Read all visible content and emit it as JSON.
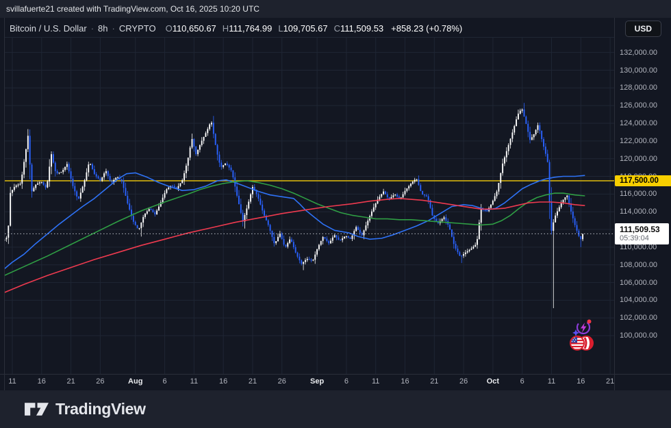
{
  "attribution": {
    "text": "svillafuerte21 created with TradingView.com, Oct 16, 2025 10:20 UTC"
  },
  "header": {
    "symbol": "Bitcoin / U.S. Dollar",
    "separator": "·",
    "interval": "8h",
    "exchange": "CRYPTO",
    "ohlc": [
      {
        "label": "O",
        "value": "110,650.67"
      },
      {
        "label": "H",
        "value": "111,764.99"
      },
      {
        "label": "L",
        "value": "109,705.67"
      },
      {
        "label": "C",
        "value": "111,509.53"
      }
    ],
    "change": "+858.23 (+0.78%)",
    "currency_button": "USD"
  },
  "price_axis": {
    "labels": [
      {
        "price_k": 132,
        "label": "132,000.00"
      },
      {
        "price_k": 130,
        "label": "130,000.00"
      },
      {
        "price_k": 128,
        "label": "128,000.00"
      },
      {
        "price_k": 126,
        "label": "126,000.00"
      },
      {
        "price_k": 124,
        "label": "124,000.00"
      },
      {
        "price_k": 122,
        "label": "122,000.00"
      },
      {
        "price_k": 120,
        "label": "120,000.00"
      },
      {
        "price_k": 118,
        "label": "118,000.00"
      },
      {
        "price_k": 116,
        "label": "116,000.00"
      },
      {
        "price_k": 114,
        "label": "114,000.00"
      },
      {
        "price_k": 112,
        "label": "112,000.00"
      },
      {
        "price_k": 110,
        "label": "110,000.00"
      },
      {
        "price_k": 108,
        "label": "108,000.00"
      },
      {
        "price_k": 106,
        "label": "106,000.00"
      },
      {
        "price_k": 104,
        "label": "104,000.00"
      },
      {
        "price_k": 102,
        "label": "102,000.00"
      },
      {
        "price_k": 100,
        "label": "100,000.00"
      }
    ],
    "yellow_label": "117,500.00",
    "last_price_label": "111,509.53",
    "countdown": "05:39:04"
  },
  "footer": {
    "brand": "TradingView"
  },
  "chart_data": {
    "type": "candlestick",
    "title": "Bitcoin / U.S. Dollar 8h CRYPTO",
    "price_scale": 1000,
    "day0_date": "Jul 9, 2025",
    "y_axis": {
      "min_k": 95.75,
      "max_k": 133.68,
      "grid_min_k": 100,
      "grid_max_k": 132,
      "grid_step_k": 2
    },
    "x_ticks": [
      {
        "label": "11",
        "day": 2
      },
      {
        "label": "16",
        "day": 7
      },
      {
        "label": "21",
        "day": 12
      },
      {
        "label": "26",
        "day": 17
      },
      {
        "label": "Aug",
        "day": 23,
        "major": true
      },
      {
        "label": "6",
        "day": 28
      },
      {
        "label": "11",
        "day": 33
      },
      {
        "label": "16",
        "day": 38
      },
      {
        "label": "21",
        "day": 43
      },
      {
        "label": "26",
        "day": 48
      },
      {
        "label": "Sep",
        "day": 54,
        "major": true
      },
      {
        "label": "6",
        "day": 59
      },
      {
        "label": "11",
        "day": 64
      },
      {
        "label": "16",
        "day": 69
      },
      {
        "label": "21",
        "day": 74
      },
      {
        "label": "26",
        "day": 79
      },
      {
        "label": "Oct",
        "day": 84,
        "major": true
      },
      {
        "label": "6",
        "day": 89
      },
      {
        "label": "11",
        "day": 94
      },
      {
        "label": "16",
        "day": 99
      },
      {
        "label": "21",
        "day": 104
      }
    ],
    "horizontal_line_price_k": 117.5,
    "last_price": 111509.53,
    "last_price_k": 111.50953,
    "candle_interval_days": 0.3333,
    "first_candle_day": 0.5,
    "last_candle_day": 99.67,
    "price_path_k": [
      [
        0.5,
        110.7
      ],
      [
        1.4,
        111.2
      ],
      [
        1.8,
        116.1
      ],
      [
        2.6,
        116.9
      ],
      [
        3.6,
        117.2
      ],
      [
        4.6,
        121.5
      ],
      [
        4.9,
        122.9
      ],
      [
        5.4,
        116.2
      ],
      [
        6.2,
        117.1
      ],
      [
        7.1,
        117.4
      ],
      [
        8.0,
        116.6
      ],
      [
        8.8,
        120.6
      ],
      [
        9.6,
        118.3
      ],
      [
        10.6,
        118.5
      ],
      [
        11.5,
        119.4
      ],
      [
        12.5,
        116.9
      ],
      [
        13.4,
        115.3
      ],
      [
        14.4,
        117.3
      ],
      [
        15.3,
        119.7
      ],
      [
        16.2,
        118.2
      ],
      [
        17.2,
        117.5
      ],
      [
        18.1,
        118.7
      ],
      [
        19.0,
        117.2
      ],
      [
        20.0,
        118.0
      ],
      [
        20.9,
        117.4
      ],
      [
        21.8,
        115.0
      ],
      [
        22.8,
        112.9
      ],
      [
        23.7,
        111.9
      ],
      [
        24.6,
        113.6
      ],
      [
        25.6,
        114.4
      ],
      [
        26.5,
        113.7
      ],
      [
        27.4,
        114.9
      ],
      [
        28.4,
        116.5
      ],
      [
        29.3,
        117.0
      ],
      [
        30.2,
        116.6
      ],
      [
        31.2,
        117.6
      ],
      [
        32.1,
        119.9
      ],
      [
        32.8,
        122.3
      ],
      [
        33.5,
        120.5
      ],
      [
        34.4,
        121.9
      ],
      [
        35.4,
        123.2
      ],
      [
        36.1,
        124.3
      ],
      [
        37.0,
        120.9
      ],
      [
        37.7,
        119.0
      ],
      [
        38.6,
        119.5
      ],
      [
        39.6,
        118.6
      ],
      [
        40.5,
        115.8
      ],
      [
        41.5,
        112.9
      ],
      [
        42.4,
        114.9
      ],
      [
        43.2,
        116.9
      ],
      [
        44.1,
        115.6
      ],
      [
        45.0,
        113.8
      ],
      [
        45.9,
        112.4
      ],
      [
        46.9,
        110.3
      ],
      [
        47.8,
        111.6
      ],
      [
        48.7,
        109.9
      ],
      [
        49.6,
        111.0
      ],
      [
        50.6,
        109.2
      ],
      [
        51.5,
        108.1
      ],
      [
        52.4,
        108.7
      ],
      [
        53.4,
        108.4
      ],
      [
        54.3,
        110.0
      ],
      [
        55.2,
        111.2
      ],
      [
        56.2,
        110.4
      ],
      [
        57.1,
        111.4
      ],
      [
        58.0,
        110.7
      ],
      [
        59.0,
        111.3
      ],
      [
        59.9,
        110.9
      ],
      [
        60.8,
        112.3
      ],
      [
        61.8,
        111.3
      ],
      [
        62.7,
        112.8
      ],
      [
        63.6,
        114.2
      ],
      [
        64.6,
        115.5
      ],
      [
        65.5,
        116.3
      ],
      [
        66.4,
        115.4
      ],
      [
        67.4,
        116.0
      ],
      [
        68.3,
        115.4
      ],
      [
        69.2,
        116.4
      ],
      [
        70.2,
        117.2
      ],
      [
        71.1,
        117.8
      ],
      [
        72.0,
        116.0
      ],
      [
        73.0,
        115.7
      ],
      [
        73.9,
        113.4
      ],
      [
        74.8,
        112.7
      ],
      [
        75.8,
        113.4
      ],
      [
        76.7,
        112.3
      ],
      [
        77.6,
        110.1
      ],
      [
        78.6,
        108.9
      ],
      [
        79.5,
        109.4
      ],
      [
        80.4,
        109.8
      ],
      [
        81.4,
        110.4
      ],
      [
        82.1,
        114.3
      ],
      [
        83.1,
        114.0
      ],
      [
        84.0,
        115.0
      ],
      [
        84.9,
        116.4
      ],
      [
        85.8,
        119.4
      ],
      [
        86.8,
        121.5
      ],
      [
        87.7,
        123.4
      ],
      [
        88.4,
        125.0
      ],
      [
        89.1,
        125.7
      ],
      [
        89.8,
        124.0
      ],
      [
        90.5,
        122.1
      ],
      [
        91.2,
        122.8
      ],
      [
        91.9,
        123.9
      ],
      [
        92.6,
        121.9
      ],
      [
        93.3,
        120.2
      ],
      [
        93.63,
        119.2
      ],
      [
        94.0,
        111.4
      ],
      [
        94.7,
        113.4
      ],
      [
        95.4,
        114.4
      ],
      [
        96.1,
        115.3
      ],
      [
        96.8,
        115.9
      ],
      [
        97.5,
        114.0
      ],
      [
        98.2,
        112.4
      ],
      [
        98.9,
        111.1
      ],
      [
        99.4,
        110.7
      ],
      [
        99.67,
        111.51
      ]
    ],
    "wick_extremes_k": [
      {
        "day": 0.5,
        "type": "low",
        "price": 109.8
      },
      {
        "day": 4.9,
        "type": "high",
        "price": 123.3
      },
      {
        "day": 23.7,
        "type": "low",
        "price": 111.2
      },
      {
        "day": 36.1,
        "type": "high",
        "price": 124.6
      },
      {
        "day": 41.5,
        "type": "low",
        "price": 112.1
      },
      {
        "day": 51.5,
        "type": "low",
        "price": 107.4
      },
      {
        "day": 71.1,
        "type": "high",
        "price": 118.1
      },
      {
        "day": 78.6,
        "type": "low",
        "price": 108.2
      },
      {
        "day": 89.1,
        "type": "high",
        "price": 126.3
      },
      {
        "day": 94.0,
        "type": "low",
        "price": 103.1
      },
      {
        "day": 98.9,
        "type": "low",
        "price": 110.0
      }
    ],
    "moving_averages": [
      {
        "name": "ma-fast-blue",
        "color": "#2e72f6",
        "points_k": [
          [
            0,
            107.2
          ],
          [
            2,
            108.3
          ],
          [
            4,
            109.2
          ],
          [
            6,
            110.4
          ],
          [
            8,
            111.5
          ],
          [
            10,
            112.6
          ],
          [
            12,
            113.6
          ],
          [
            14,
            114.6
          ],
          [
            16,
            115.5
          ],
          [
            18,
            116.6
          ],
          [
            20,
            117.7
          ],
          [
            21.5,
            118.3
          ],
          [
            23,
            118.4
          ],
          [
            25,
            117.9
          ],
          [
            27,
            117.3
          ],
          [
            29,
            116.8
          ],
          [
            31,
            116.4
          ],
          [
            33,
            116.5
          ],
          [
            35,
            116.9
          ],
          [
            37,
            117.5
          ],
          [
            38.5,
            117.6
          ],
          [
            40,
            117.3
          ],
          [
            42,
            116.8
          ],
          [
            44,
            116.3
          ],
          [
            46,
            115.9
          ],
          [
            48,
            115.7
          ],
          [
            50,
            115.5
          ],
          [
            51,
            114.9
          ],
          [
            52,
            114.2
          ],
          [
            53.5,
            113.4
          ],
          [
            55,
            112.6
          ],
          [
            57,
            111.9
          ],
          [
            59.5,
            111.6
          ],
          [
            61,
            111.2
          ],
          [
            63,
            110.9
          ],
          [
            65,
            111.0
          ],
          [
            67,
            111.4
          ],
          [
            69,
            111.9
          ],
          [
            71,
            112.4
          ],
          [
            73,
            113.0
          ],
          [
            75,
            113.8
          ],
          [
            77,
            114.6
          ],
          [
            79,
            114.8
          ],
          [
            80.5,
            114.7
          ],
          [
            82,
            114.4
          ],
          [
            83,
            114.2
          ],
          [
            84.5,
            114.4
          ],
          [
            86,
            115.0
          ],
          [
            87.5,
            115.8
          ],
          [
            89,
            116.6
          ],
          [
            90.5,
            117.1
          ],
          [
            92,
            117.5
          ],
          [
            93,
            117.7
          ],
          [
            94.5,
            117.9
          ],
          [
            96,
            118.0
          ],
          [
            98,
            118.0
          ],
          [
            99.7,
            118.1
          ]
        ]
      },
      {
        "name": "ma-mid-green",
        "color": "#2f9e44",
        "points_k": [
          [
            0,
            106.6
          ],
          [
            4,
            107.8
          ],
          [
            8,
            109.0
          ],
          [
            12,
            110.3
          ],
          [
            16,
            111.6
          ],
          [
            20,
            112.9
          ],
          [
            24,
            114.1
          ],
          [
            28,
            115.1
          ],
          [
            32,
            116.0
          ],
          [
            34,
            116.5
          ],
          [
            36,
            116.9
          ],
          [
            38,
            117.2
          ],
          [
            40,
            117.4
          ],
          [
            42,
            117.5
          ],
          [
            44,
            117.3
          ],
          [
            46,
            117.0
          ],
          [
            48,
            116.6
          ],
          [
            50,
            116.1
          ],
          [
            52,
            115.5
          ],
          [
            54,
            114.9
          ],
          [
            56,
            114.4
          ],
          [
            58,
            113.9
          ],
          [
            60,
            113.6
          ],
          [
            62,
            113.4
          ],
          [
            64,
            113.2
          ],
          [
            66,
            113.2
          ],
          [
            68,
            113.1
          ],
          [
            70,
            113.1
          ],
          [
            72,
            113.0
          ],
          [
            74,
            112.9
          ],
          [
            76,
            112.8
          ],
          [
            78,
            112.7
          ],
          [
            80,
            112.6
          ],
          [
            82,
            112.5
          ],
          [
            84,
            112.6
          ],
          [
            85.5,
            113.0
          ],
          [
            87,
            113.6
          ],
          [
            88.5,
            114.4
          ],
          [
            90,
            115.1
          ],
          [
            91.5,
            115.6
          ],
          [
            93,
            115.9
          ],
          [
            94.5,
            116.1
          ],
          [
            96,
            116.1
          ],
          [
            98,
            115.9
          ],
          [
            99.7,
            115.8
          ]
        ]
      },
      {
        "name": "ma-slow-red",
        "color": "#ef3a4f",
        "points_k": [
          [
            0,
            104.7
          ],
          [
            4,
            105.8
          ],
          [
            8,
            106.8
          ],
          [
            12,
            107.7
          ],
          [
            16,
            108.6
          ],
          [
            20,
            109.4
          ],
          [
            24,
            110.2
          ],
          [
            28,
            110.9
          ],
          [
            32,
            111.6
          ],
          [
            36,
            112.2
          ],
          [
            40,
            112.8
          ],
          [
            44,
            113.3
          ],
          [
            48,
            113.8
          ],
          [
            52,
            114.2
          ],
          [
            56,
            114.6
          ],
          [
            60,
            114.9
          ],
          [
            63,
            115.2
          ],
          [
            66,
            115.4
          ],
          [
            68,
            115.5
          ],
          [
            70,
            115.4
          ],
          [
            72,
            115.3
          ],
          [
            74,
            115.1
          ],
          [
            76,
            114.9
          ],
          [
            78,
            114.7
          ],
          [
            80,
            114.5
          ],
          [
            82,
            114.3
          ],
          [
            84,
            114.3
          ],
          [
            86,
            114.4
          ],
          [
            88,
            114.7
          ],
          [
            90,
            115.0
          ],
          [
            92,
            115.1
          ],
          [
            94,
            115.1
          ],
          [
            96,
            115.0
          ],
          [
            98,
            114.8
          ],
          [
            99.7,
            114.7
          ]
        ]
      }
    ],
    "colors": {
      "up": "#ffffff",
      "down": "#2962ff",
      "grid": "#1f2634",
      "border": "#2a2e39",
      "background": "#131722",
      "priceline_yellow": "#c5a611",
      "yellow_label_bg": "#f8cf00",
      "last_price_dotted": "#b8bcc4"
    }
  }
}
